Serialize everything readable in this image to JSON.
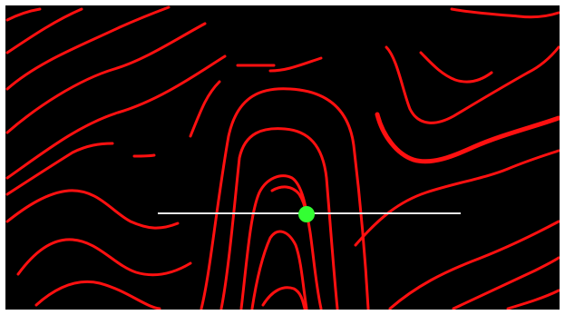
{
  "colors": {
    "background": "#000000",
    "frame": "#ffffff",
    "contour": "#ff1010",
    "scanline": "#e6e6e6",
    "marker": "#33ff33"
  },
  "icons": {
    "marker": "green-dot-icon"
  }
}
